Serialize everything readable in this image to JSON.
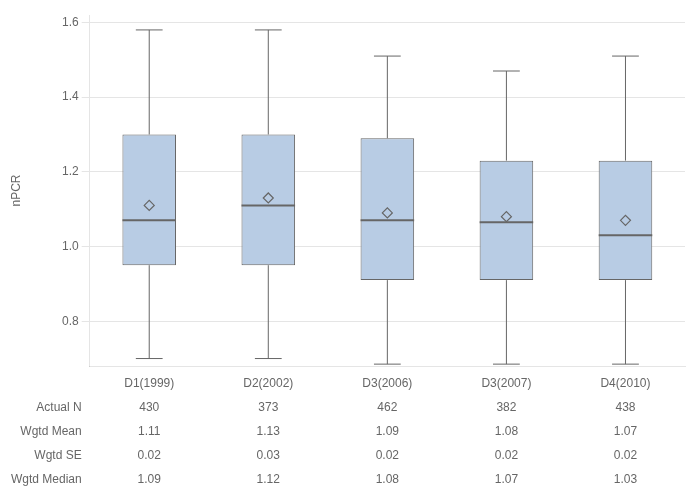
{
  "chart_data": {
    "type": "box",
    "categories": [
      "D1(1999)",
      "D2(2002)",
      "D3(2006)",
      "D3(2007)",
      "D4(2010)"
    ],
    "boxes": [
      {
        "q1": 0.95,
        "median": 1.07,
        "q3": 1.3,
        "whisker_low": 0.7,
        "whisker_high": 1.58,
        "mean": 1.11
      },
      {
        "q1": 0.95,
        "median": 1.11,
        "q3": 1.3,
        "whisker_low": 0.7,
        "whisker_high": 1.58,
        "mean": 1.13
      },
      {
        "q1": 0.91,
        "median": 1.07,
        "q3": 1.29,
        "whisker_low": 0.685,
        "whisker_high": 1.51,
        "mean": 1.09
      },
      {
        "q1": 0.91,
        "median": 1.065,
        "q3": 1.23,
        "whisker_low": 0.685,
        "whisker_high": 1.47,
        "mean": 1.08
      },
      {
        "q1": 0.91,
        "median": 1.03,
        "q3": 1.23,
        "whisker_low": 0.685,
        "whisker_high": 1.51,
        "mean": 1.07
      }
    ],
    "table": [
      {
        "label": "Actual N",
        "values": [
          430,
          373,
          462,
          382,
          438
        ]
      },
      {
        "label": "Wgtd Mean",
        "values": [
          1.11,
          1.13,
          1.09,
          1.08,
          1.07
        ]
      },
      {
        "label": "Wgtd SE",
        "values": [
          0.02,
          0.03,
          0.02,
          0.02,
          0.02
        ]
      },
      {
        "label": "Wgtd Median",
        "values": [
          1.09,
          1.12,
          1.08,
          1.07,
          1.03
        ]
      }
    ],
    "ylabel": "nPCR",
    "ylim": [
      0.68,
      1.62
    ],
    "yticks": [
      0.8,
      {
        "value": 1.0,
        "label": "1.0"
      },
      1.2,
      1.4,
      1.6
    ],
    "color": "#b8cce4",
    "grid": true,
    "tick_labels": "y"
  }
}
